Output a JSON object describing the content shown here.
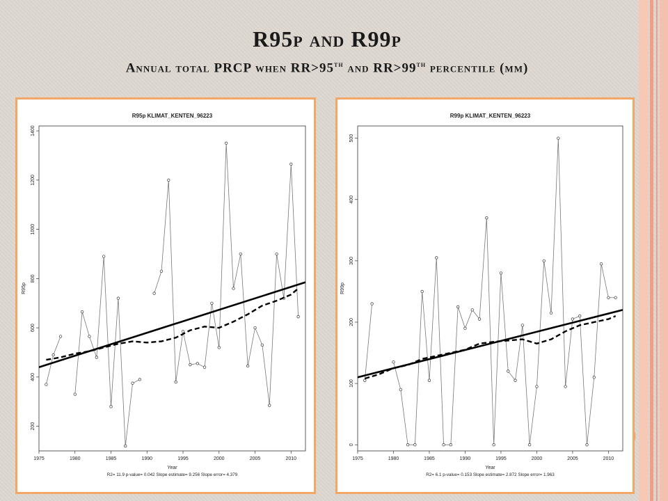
{
  "slide": {
    "title": {
      "part1": "R95",
      "part2": "p",
      "part3": " and ",
      "part4": "R99",
      "part5": "p"
    },
    "subtitle": {
      "part1": "Annual total PRCP when RR>95",
      "sup1": "th",
      "part2": " and RR>99",
      "sup2": "th",
      "part3": " percentile (mm)"
    },
    "colors": {
      "background": "#dcd6cf",
      "panel_border": "#f2a766",
      "stripe_light": "#f5c9b6",
      "stripe_dark": "#ef9f83"
    }
  },
  "chart_data": [
    {
      "type": "line",
      "title": "R95p   KLIMAT_KENTEN_96223",
      "xlabel": "Year",
      "ylabel": "R95p",
      "xlim": [
        1975,
        2012
      ],
      "ylim": [
        100,
        1420
      ],
      "xticks": [
        1975,
        1980,
        1985,
        1990,
        1995,
        2000,
        2005,
        2010
      ],
      "yticks": [
        200,
        400,
        600,
        800,
        1000,
        1200,
        1400
      ],
      "footer": "R2= 11.9  p-value= 0.042  Slope estimate= 9.256  Slope error= 4.379",
      "series": [
        {
          "kind": "observed",
          "x": [
            1976,
            1977,
            1978,
            1979,
            1980,
            1981,
            1982,
            1983,
            1984,
            1985,
            1986,
            1987,
            1988,
            1989,
            1990,
            1991,
            1992,
            1993,
            1994,
            1995,
            1996,
            1997,
            1998,
            1999,
            2000,
            2001,
            2002,
            2003,
            2004,
            2005,
            2006,
            2007,
            2008,
            2009,
            2010,
            2011
          ],
          "y": [
            370,
            490,
            565,
            null,
            330,
            665,
            565,
            480,
            890,
            280,
            720,
            120,
            375,
            390,
            null,
            740,
            830,
            1200,
            380,
            585,
            450,
            455,
            440,
            700,
            520,
            1350,
            760,
            900,
            445,
            600,
            530,
            285,
            900,
            720,
            1265,
            645
          ]
        },
        {
          "kind": "trend",
          "x": [
            1975,
            2012
          ],
          "y": [
            440,
            785
          ]
        },
        {
          "kind": "smooth",
          "x": [
            1976,
            1978,
            1980,
            1982,
            1984,
            1986,
            1988,
            1990,
            1992,
            1994,
            1996,
            1998,
            2000,
            2002,
            2004,
            2006,
            2008,
            2010,
            2011
          ],
          "y": [
            470,
            480,
            495,
            505,
            520,
            535,
            545,
            540,
            545,
            560,
            590,
            605,
            600,
            625,
            655,
            690,
            710,
            735,
            760
          ]
        }
      ]
    },
    {
      "type": "line",
      "title": "R99p   KLIMAT_KENTEN_96223",
      "xlabel": "Year",
      "ylabel": "R99p",
      "xlim": [
        1975,
        2012
      ],
      "ylim": [
        -10,
        520
      ],
      "xticks": [
        1975,
        1980,
        1985,
        1990,
        1995,
        2000,
        2005,
        2010
      ],
      "yticks": [
        0,
        100,
        200,
        300,
        400,
        500
      ],
      "footer": "R2= 6.1  p-value= 0.153  Slope estimate= 2.872  Slope error= 1.963",
      "series": [
        {
          "kind": "observed",
          "x": [
            1976,
            1977,
            1978,
            1979,
            1980,
            1981,
            1982,
            1983,
            1984,
            1985,
            1986,
            1987,
            1988,
            1989,
            1990,
            1991,
            1992,
            1993,
            1994,
            1995,
            1996,
            1997,
            1998,
            1999,
            2000,
            2001,
            2002,
            2003,
            2004,
            2005,
            2006,
            2007,
            2008,
            2009,
            2010,
            2011
          ],
          "y": [
            105,
            230,
            null,
            null,
            135,
            90,
            0,
            0,
            250,
            105,
            305,
            0,
            0,
            225,
            190,
            220,
            205,
            370,
            0,
            280,
            120,
            105,
            195,
            0,
            95,
            300,
            215,
            500,
            95,
            205,
            210,
            0,
            110,
            295,
            240,
            240
          ]
        },
        {
          "kind": "trend",
          "x": [
            1975,
            2012
          ],
          "y": [
            110,
            220
          ]
        },
        {
          "kind": "smooth",
          "x": [
            1976,
            1978,
            1980,
            1982,
            1984,
            1986,
            1988,
            1990,
            1992,
            1994,
            1996,
            1998,
            2000,
            2002,
            2004,
            2006,
            2008,
            2010,
            2011
          ],
          "y": [
            108,
            115,
            125,
            130,
            140,
            145,
            150,
            155,
            165,
            168,
            170,
            172,
            165,
            172,
            185,
            195,
            200,
            205,
            210
          ]
        }
      ]
    }
  ]
}
